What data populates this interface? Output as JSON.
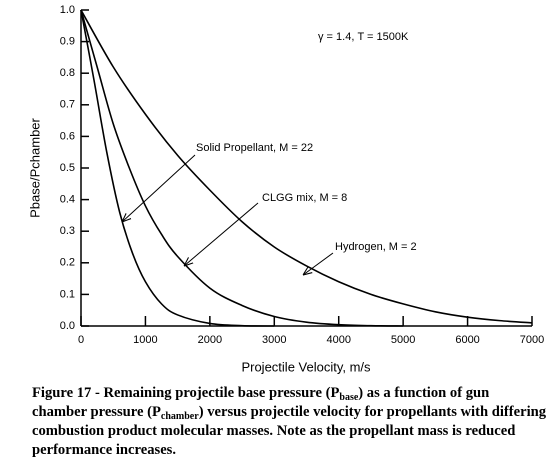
{
  "chart_data": {
    "type": "line",
    "annotation": "γ = 1.4,   T = 1500K",
    "xlabel": "Projectile Velocity, m/s",
    "ylabel": "Pbase/Pchamber",
    "xlim": [
      0,
      7000
    ],
    "ylim": [
      0,
      1.0
    ],
    "xticks": [
      0,
      1000,
      2000,
      3000,
      4000,
      5000,
      6000,
      7000
    ],
    "yticks": [
      {
        "value": 0,
        "label": "0.0"
      },
      0.1,
      0.2,
      0.3,
      0.4,
      0.5,
      0.6,
      0.7,
      0.8,
      0.9,
      {
        "value": 1,
        "label": "1.0"
      }
    ],
    "series": [
      {
        "name": "Solid Propellant, M = 22",
        "color": "#000000",
        "x": [
          0,
          200,
          400,
          600,
          800,
          1000,
          1250,
          1500,
          2000,
          2500,
          3000
        ],
        "values": [
          1,
          0.78,
          0.55,
          0.36,
          0.23,
          0.14,
          0.07,
          0.035,
          0.008,
          0.001,
          0
        ]
      },
      {
        "name": "CLGG mix, M = 8",
        "color": "#000000",
        "x": [
          0,
          250,
          500,
          750,
          1000,
          1250,
          1500,
          2000,
          2500,
          3000,
          3500,
          4000,
          4500,
          5000
        ],
        "values": [
          1,
          0.82,
          0.64,
          0.5,
          0.38,
          0.29,
          0.22,
          0.12,
          0.065,
          0.03,
          0.012,
          0.004,
          0.001,
          0
        ]
      },
      {
        "name": "Hydrogen, M = 2",
        "color": "#000000",
        "x": [
          0,
          500,
          1000,
          1500,
          2000,
          2500,
          3000,
          3500,
          4000,
          4500,
          5000,
          5500,
          6000,
          6500,
          7000
        ],
        "values": [
          1,
          0.82,
          0.67,
          0.54,
          0.43,
          0.33,
          0.25,
          0.19,
          0.14,
          0.1,
          0.07,
          0.045,
          0.028,
          0.017,
          0.01
        ]
      }
    ]
  },
  "caption": {
    "parts": [
      "Figure 17 - Remaining projectile base pressure (P",
      "base",
      ") as a function of gun chamber pressure (P",
      "chamber",
      ") versus projectile velocity for propellants with differing combustion product molecular masses.  Note as the propellant mass is reduced performance increases."
    ]
  }
}
